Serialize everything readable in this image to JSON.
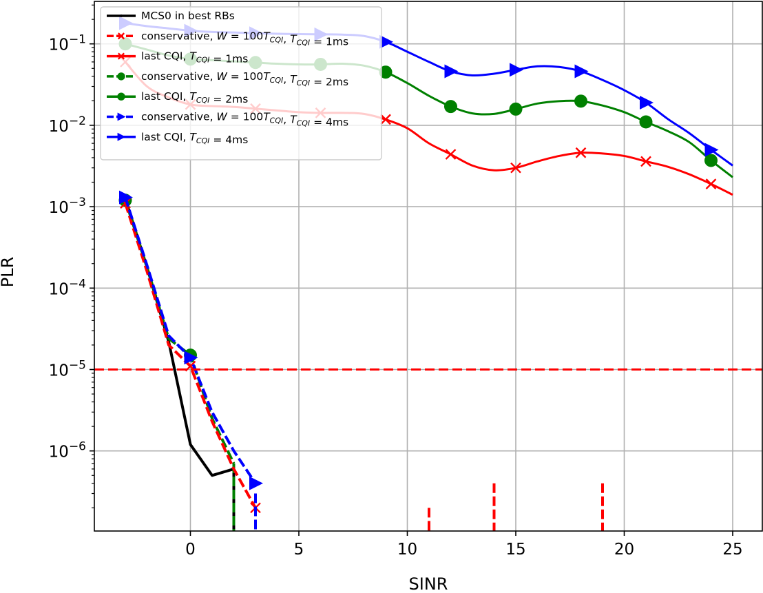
{
  "chart_data": {
    "type": "line",
    "xlabel": "SINR",
    "ylabel": "PLR",
    "xlim": [
      -4.5,
      26.3
    ],
    "ylim_log10": [
      -7.98,
      -0.5
    ],
    "y_scale": "log",
    "grid": true,
    "legend_position": "top-left",
    "x_ticks": [
      {
        "value": 0,
        "label": "0"
      },
      {
        "value": 5,
        "label": "5"
      },
      {
        "value": 10,
        "label": "10"
      },
      {
        "value": 15,
        "label": "15"
      },
      {
        "value": 20,
        "label": "20"
      },
      {
        "value": 25,
        "label": "25"
      }
    ],
    "y_ticks": [
      {
        "exp": -1,
        "base": "10",
        "sup": "−1"
      },
      {
        "exp": -2,
        "base": "10",
        "sup": "−2"
      },
      {
        "exp": -3,
        "base": "10",
        "sup": "−3"
      },
      {
        "exp": -4,
        "base": "10",
        "sup": "−4"
      },
      {
        "exp": -5,
        "base": "10",
        "sup": "−5"
      },
      {
        "exp": -6,
        "base": "10",
        "sup": "−6"
      }
    ],
    "reference_line": {
      "value": 1e-05,
      "color": "#ff0000",
      "style": "dashed"
    },
    "series": [
      {
        "name": "MCS0 in best RBs",
        "color": "#000000",
        "dash": false,
        "marker": "dot",
        "line_width": 4,
        "x": [
          -3,
          -2,
          -1,
          0,
          1,
          2
        ],
        "y": [
          0.00125,
          0.00018,
          2.2e-05,
          1.2e-06,
          5e-07,
          6e-07
        ],
        "markers": [],
        "drop": {
          "x": 2,
          "y_top": 6e-07
        }
      },
      {
        "name": "conservative, W=100T_CQI, T_CQI=1ms",
        "color": "#ff0000",
        "dash": true,
        "marker": "x",
        "line_width": 4,
        "x": [
          -3,
          -2,
          -1,
          0,
          1,
          2,
          3
        ],
        "y": [
          0.0011,
          0.00016,
          2e-05,
          1.1e-05,
          2.3e-06,
          6e-07,
          2e-07
        ],
        "markers": [
          -3,
          0,
          3
        ],
        "drops": [
          {
            "x": 11,
            "y_top": 2e-07
          },
          {
            "x": 14,
            "y_top": 4e-07
          },
          {
            "x": 19,
            "y_top": 4e-07
          }
        ]
      },
      {
        "name": "last CQI, T_CQI=1ms",
        "color": "#ff0000",
        "dash": false,
        "marker": "x",
        "line_width": 3,
        "x": [
          -3,
          -2,
          -1,
          0,
          1,
          2,
          3,
          4,
          5,
          6,
          7,
          8,
          9,
          10,
          11,
          12,
          13,
          14,
          15,
          16,
          17,
          18,
          19,
          20,
          21,
          22,
          23,
          24,
          25
        ],
        "y": [
          0.06,
          0.03,
          0.022,
          0.018,
          0.0172,
          0.0168,
          0.016,
          0.0152,
          0.0145,
          0.0142,
          0.0142,
          0.0138,
          0.0118,
          0.0092,
          0.006,
          0.0044,
          0.0032,
          0.0028,
          0.003,
          0.0036,
          0.0042,
          0.0046,
          0.0045,
          0.0042,
          0.0036,
          0.0031,
          0.0025,
          0.0019,
          0.0014
        ],
        "markers": [
          -3,
          0,
          3,
          6,
          9,
          12,
          15,
          18,
          21,
          24
        ]
      },
      {
        "name": "conservative, W=100T_CQI, T_CQI=2ms",
        "color": "#008000",
        "dash": true,
        "marker": "circle",
        "line_width": 4,
        "x": [
          -3,
          -2,
          -1,
          0,
          1,
          2
        ],
        "y": [
          0.0012,
          0.00018,
          2.4e-05,
          1.5e-05,
          2.5e-06,
          7e-07
        ],
        "markers": [
          -3,
          0
        ],
        "drop": {
          "x": 2,
          "y_top": 7e-07
        }
      },
      {
        "name": "last CQI, T_CQI=2ms",
        "color": "#008000",
        "dash": false,
        "marker": "circle",
        "line_width": 3,
        "x": [
          -3,
          -2,
          -1,
          0,
          1,
          2,
          3,
          4,
          5,
          6,
          7,
          8,
          9,
          10,
          11,
          12,
          13,
          14,
          15,
          16,
          17,
          18,
          19,
          20,
          21,
          22,
          23,
          24,
          25
        ],
        "y": [
          0.1,
          0.085,
          0.072,
          0.065,
          0.063,
          0.061,
          0.059,
          0.057,
          0.056,
          0.056,
          0.057,
          0.054,
          0.045,
          0.033,
          0.023,
          0.017,
          0.014,
          0.0138,
          0.0158,
          0.0185,
          0.0198,
          0.0198,
          0.0175,
          0.0145,
          0.011,
          0.0085,
          0.0062,
          0.0037,
          0.0023
        ],
        "markers": [
          -3,
          0,
          3,
          6,
          9,
          12,
          15,
          18,
          21,
          24
        ]
      },
      {
        "name": "conservative, W=100T_CQI, T_CQI=4ms",
        "color": "#0000ff",
        "dash": true,
        "marker": "triangle-right",
        "line_width": 4,
        "x": [
          -3,
          -2,
          -1,
          0,
          1,
          2,
          3
        ],
        "y": [
          0.0013,
          0.00019,
          2.6e-05,
          1.4e-05,
          3e-06,
          1e-06,
          4e-07
        ],
        "markers": [
          -3,
          0,
          3
        ],
        "drop": {
          "x": 3,
          "y_top": 3e-07
        }
      },
      {
        "name": "last CQI, T_CQI=4ms",
        "color": "#0000ff",
        "dash": false,
        "marker": "triangle-right",
        "line_width": 3,
        "x": [
          -3,
          -2,
          -1,
          0,
          1,
          2,
          3,
          4,
          5,
          6,
          7,
          8,
          9,
          10,
          11,
          12,
          13,
          14,
          15,
          16,
          17,
          18,
          19,
          20,
          21,
          22,
          23,
          24,
          25
        ],
        "y": [
          0.18,
          0.165,
          0.155,
          0.145,
          0.14,
          0.138,
          0.135,
          0.133,
          0.132,
          0.131,
          0.13,
          0.125,
          0.106,
          0.08,
          0.06,
          0.046,
          0.041,
          0.043,
          0.048,
          0.053,
          0.052,
          0.046,
          0.036,
          0.027,
          0.019,
          0.012,
          0.008,
          0.005,
          0.0032
        ],
        "markers": [
          -3,
          0,
          3,
          6,
          9,
          12,
          15,
          18,
          21,
          24
        ]
      }
    ]
  },
  "legend": {
    "entries": [
      {
        "color": "#000000",
        "dash": false,
        "marker": "dot",
        "parts": [
          {
            "t": "MCS0 in best RBs"
          }
        ]
      },
      {
        "color": "#ff0000",
        "dash": true,
        "marker": "x",
        "parts": [
          {
            "t": "conservative, "
          },
          {
            "t": "W",
            "i": true
          },
          {
            "t": " = 100"
          },
          {
            "t": "T",
            "i": true
          },
          {
            "t": "CQI",
            "i": true,
            "sub": true
          },
          {
            "t": ", "
          },
          {
            "t": "T",
            "i": true
          },
          {
            "t": "CQI",
            "i": true,
            "sub": true
          },
          {
            "t": " = 1ms"
          }
        ]
      },
      {
        "color": "#ff0000",
        "dash": false,
        "marker": "x",
        "parts": [
          {
            "t": "last CQI, "
          },
          {
            "t": "T",
            "i": true
          },
          {
            "t": "CQI",
            "i": true,
            "sub": true
          },
          {
            "t": " = 1ms"
          }
        ]
      },
      {
        "color": "#008000",
        "dash": true,
        "marker": "circle",
        "parts": [
          {
            "t": "conservative, "
          },
          {
            "t": "W",
            "i": true
          },
          {
            "t": " = 100"
          },
          {
            "t": "T",
            "i": true
          },
          {
            "t": "CQI",
            "i": true,
            "sub": true
          },
          {
            "t": ", "
          },
          {
            "t": "T",
            "i": true
          },
          {
            "t": "CQI",
            "i": true,
            "sub": true
          },
          {
            "t": " = 2ms"
          }
        ]
      },
      {
        "color": "#008000",
        "dash": false,
        "marker": "circle",
        "parts": [
          {
            "t": "last CQI, "
          },
          {
            "t": "T",
            "i": true
          },
          {
            "t": "CQI",
            "i": true,
            "sub": true
          },
          {
            "t": " = 2ms"
          }
        ]
      },
      {
        "color": "#0000ff",
        "dash": true,
        "marker": "triangle-right",
        "parts": [
          {
            "t": "conservative, "
          },
          {
            "t": "W",
            "i": true
          },
          {
            "t": " = 100"
          },
          {
            "t": "T",
            "i": true
          },
          {
            "t": "CQI",
            "i": true,
            "sub": true
          },
          {
            "t": ", "
          },
          {
            "t": "T",
            "i": true
          },
          {
            "t": "CQI",
            "i": true,
            "sub": true
          },
          {
            "t": " = 4ms"
          }
        ]
      },
      {
        "color": "#0000ff",
        "dash": false,
        "marker": "triangle-right",
        "parts": [
          {
            "t": "last CQI, "
          },
          {
            "t": "T",
            "i": true
          },
          {
            "t": "CQI",
            "i": true,
            "sub": true
          },
          {
            "t": " = 4ms"
          }
        ]
      }
    ]
  }
}
